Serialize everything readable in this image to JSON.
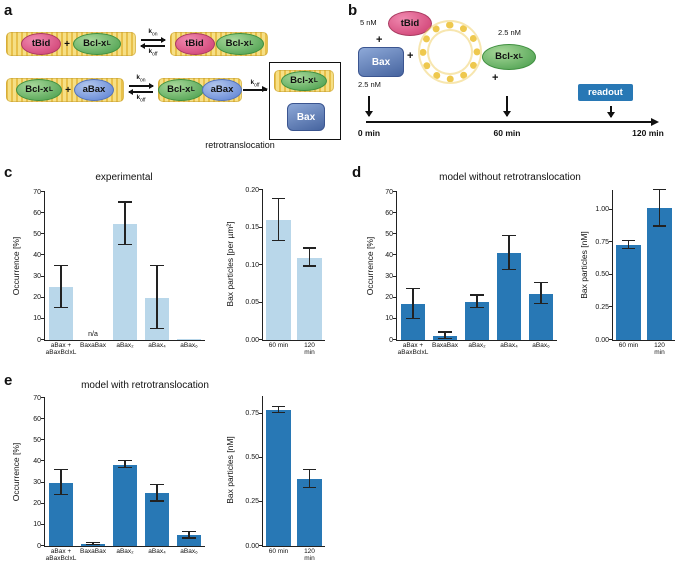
{
  "panels": {
    "a": "a",
    "b": "b",
    "c": "c",
    "d": "d",
    "e": "e"
  },
  "labels": {
    "tbid": "tBid",
    "bclx": "Bcl-x",
    "bclx_sub": "L",
    "abax": "aBax",
    "bax": "Bax",
    "plus": "+",
    "k": "k",
    "on": "on",
    "off": "off",
    "retro": "retrotranslocation"
  },
  "panel_b": {
    "tbid_conc": "5 nM",
    "bax_conc": "2.5 nM",
    "bclx_conc": "2.5 nM",
    "readout": "readout",
    "t0": "0 min",
    "t60": "60 min",
    "t120": "120 min"
  },
  "chart_data": [
    {
      "id": "c_left",
      "type": "bar",
      "title": "experimental",
      "ylabel": "Occurrence [%]",
      "ylim": [
        0,
        70
      ],
      "yticks": [
        "0",
        "10",
        "20",
        "30",
        "40",
        "50",
        "60",
        "70"
      ],
      "categories": [
        "aBax +\naBaxBclxL",
        "BaxaBax",
        "aBax₂",
        "aBax₄",
        "aBax₆"
      ],
      "values": [
        25,
        null,
        55,
        20,
        0.5
      ],
      "errors": [
        10,
        null,
        10,
        15,
        null
      ],
      "na_label": "n/a",
      "color": "#b9d7ea"
    },
    {
      "id": "c_right",
      "type": "bar",
      "title": "",
      "ylabel": "Bax particles [per µm²]",
      "ylim": [
        0,
        0.2
      ],
      "yticks": [
        "0.00",
        "0.05",
        "0.10",
        "0.15",
        "0.20"
      ],
      "categories": [
        "60 min",
        "120 min"
      ],
      "values": [
        0.16,
        0.11
      ],
      "errors": [
        0.028,
        0.012
      ],
      "color": "#b9d7ea"
    },
    {
      "id": "d_left",
      "type": "bar",
      "title": "model without retrotranslocation",
      "ylabel": "Occurrence [%]",
      "ylim": [
        0,
        70
      ],
      "yticks": [
        "0",
        "10",
        "20",
        "30",
        "40",
        "50",
        "60",
        "70"
      ],
      "categories": [
        "aBax +\naBaxBclxL",
        "BaxaBax",
        "aBax₂",
        "aBax₄",
        "aBax₆"
      ],
      "values": [
        17,
        2,
        18,
        41,
        22
      ],
      "errors": [
        7,
        1.5,
        3,
        8,
        5
      ],
      "color": "#2878b5"
    },
    {
      "id": "d_right",
      "type": "bar",
      "title": "",
      "ylabel": "Bax particles [nM]",
      "ylim": [
        0,
        1.15
      ],
      "yticks": [
        "0.00",
        "0.25",
        "0.50",
        "0.75",
        "1.00"
      ],
      "categories": [
        "60 min",
        "120 min"
      ],
      "values": [
        0.73,
        1.01
      ],
      "errors": [
        0.03,
        0.14
      ],
      "color": "#2878b5"
    },
    {
      "id": "e_left",
      "type": "bar",
      "title": "model with retrotranslocation",
      "ylabel": "Occurrence [%]",
      "ylim": [
        0,
        70
      ],
      "yticks": [
        "0",
        "10",
        "20",
        "30",
        "40",
        "50",
        "60",
        "70"
      ],
      "categories": [
        "aBax +\naBaxBclxL",
        "BaxaBax",
        "aBax₂",
        "aBax₄",
        "aBax₆"
      ],
      "values": [
        30,
        1,
        38.5,
        25,
        5
      ],
      "errors": [
        6,
        0.5,
        1.5,
        4,
        1.5
      ],
      "color": "#2878b5"
    },
    {
      "id": "e_right",
      "type": "bar",
      "title": "",
      "ylabel": "Bax particles [nM]",
      "ylim": [
        0,
        0.85
      ],
      "yticks": [
        "0.00",
        "0.25",
        "0.50",
        "0.75"
      ],
      "categories": [
        "60 min",
        "120 min"
      ],
      "values": [
        0.77,
        0.38
      ],
      "errors": [
        0.015,
        0.05
      ],
      "color": "#2878b5"
    }
  ]
}
